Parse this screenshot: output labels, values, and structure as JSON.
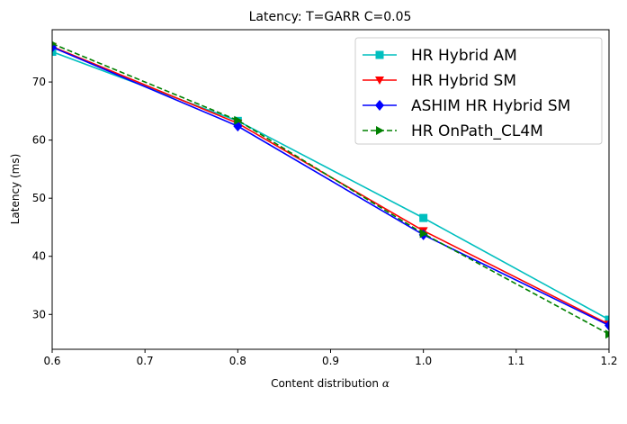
{
  "chart_data": {
    "type": "line",
    "title": "Latency: T=GARR C=0.05",
    "xlabel": "Content distribution",
    "xlabel_symbol": "α",
    "ylabel": "Latency (ms)",
    "xlim": [
      0.6,
      1.2
    ],
    "ylim": [
      24,
      79
    ],
    "xticks": [
      "0.6",
      "0.7",
      "0.8",
      "0.9",
      "1.0",
      "1.1",
      "1.2"
    ],
    "xtick_values": [
      0.6,
      0.7,
      0.8,
      0.9,
      1.0,
      1.1,
      1.2
    ],
    "yticks": [
      "30",
      "40",
      "50",
      "60",
      "70"
    ],
    "ytick_values": [
      30,
      40,
      50,
      60,
      70
    ],
    "grid": false,
    "legend_position": "top-right",
    "x": [
      0.6,
      0.8,
      1.0,
      1.2
    ],
    "series": [
      {
        "name": "HR Hybrid AM",
        "values": [
          75.2,
          63.3,
          46.6,
          29.1
        ],
        "color": "#00bfbf",
        "marker": "square",
        "dashed": false
      },
      {
        "name": "HR Hybrid SM",
        "values": [
          76.1,
          62.9,
          44.4,
          28.3
        ],
        "color": "#ff0000",
        "marker": "triangle-down",
        "dashed": false
      },
      {
        "name": "ASHIM HR Hybrid SM",
        "values": [
          76.0,
          62.4,
          43.7,
          28.1
        ],
        "color": "#0000ff",
        "marker": "diamond",
        "dashed": false
      },
      {
        "name": "HR OnPath_CL4M",
        "values": [
          76.6,
          63.4,
          43.9,
          26.6
        ],
        "color": "#008000",
        "marker": "triangle-right",
        "dashed": true
      }
    ]
  }
}
